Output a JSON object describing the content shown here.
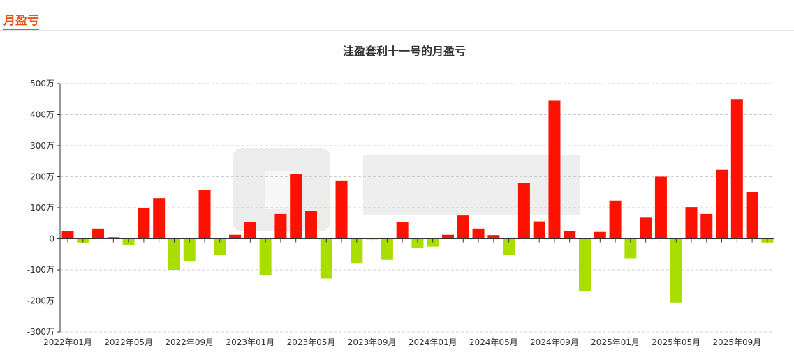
{
  "page": {
    "tab_label": "月盈亏"
  },
  "chart_data": {
    "type": "bar",
    "title": "洼盈套利十一号的月盈亏",
    "unit": "万",
    "ylim": [
      -300,
      500
    ],
    "yticks": [
      -300,
      -200,
      -100,
      0,
      100,
      200,
      300,
      400,
      500
    ],
    "ytick_labels": [
      "-300万",
      "-200万",
      "-100万",
      "0",
      "100万",
      "200万",
      "300万",
      "400万",
      "500万"
    ],
    "grid": true,
    "colors": {
      "positive": "#ff1100",
      "negative": "#aadd00"
    },
    "categories": [
      "2022年01月",
      "2022年02月",
      "2022年03月",
      "2022年04月",
      "2022年05月",
      "2022年06月",
      "2022年07月",
      "2022年08月",
      "2022年09月",
      "2022年10月",
      "2022年11月",
      "2022年12月",
      "2023年01月",
      "2023年02月",
      "2023年03月",
      "2023年04月",
      "2023年05月",
      "2023年06月",
      "2023年07月",
      "2023年08月",
      "2023年09月",
      "2023年10月",
      "2023年11月",
      "2023年12月",
      "2024年01月",
      "2024年02月",
      "2024年03月",
      "2024年04月",
      "2024年05月",
      "2024年06月",
      "2024年07月",
      "2024年08月",
      "2024年09月",
      "2024年10月",
      "2024年11月",
      "2024年12月",
      "2025年01月",
      "2025年02月",
      "2025年03月",
      "2025年04月",
      "2025年05月",
      "2025年06月",
      "2025年07月",
      "2025年08月",
      "2025年09月",
      "2025年10月",
      "2025年11月"
    ],
    "values": [
      25,
      -12,
      33,
      5,
      -20,
      98,
      131,
      -100,
      -73,
      157,
      -53,
      13,
      55,
      -118,
      80,
      210,
      90,
      -128,
      188,
      -78,
      -2,
      -68,
      53,
      -30,
      -25,
      13,
      75,
      33,
      12,
      -52,
      180,
      56,
      445,
      25,
      -170,
      22,
      123,
      -63,
      70,
      200,
      -205,
      102,
      80,
      222,
      450,
      150,
      -12
    ],
    "xtick_labels": [
      "2022年01月",
      "2022年05月",
      "2022年09月",
      "2023年01月",
      "2023年05月",
      "2023年09月",
      "2024年01月",
      "2024年05月",
      "2024年09月",
      "2025年01月",
      "2025年05月",
      "2025年09月"
    ]
  }
}
